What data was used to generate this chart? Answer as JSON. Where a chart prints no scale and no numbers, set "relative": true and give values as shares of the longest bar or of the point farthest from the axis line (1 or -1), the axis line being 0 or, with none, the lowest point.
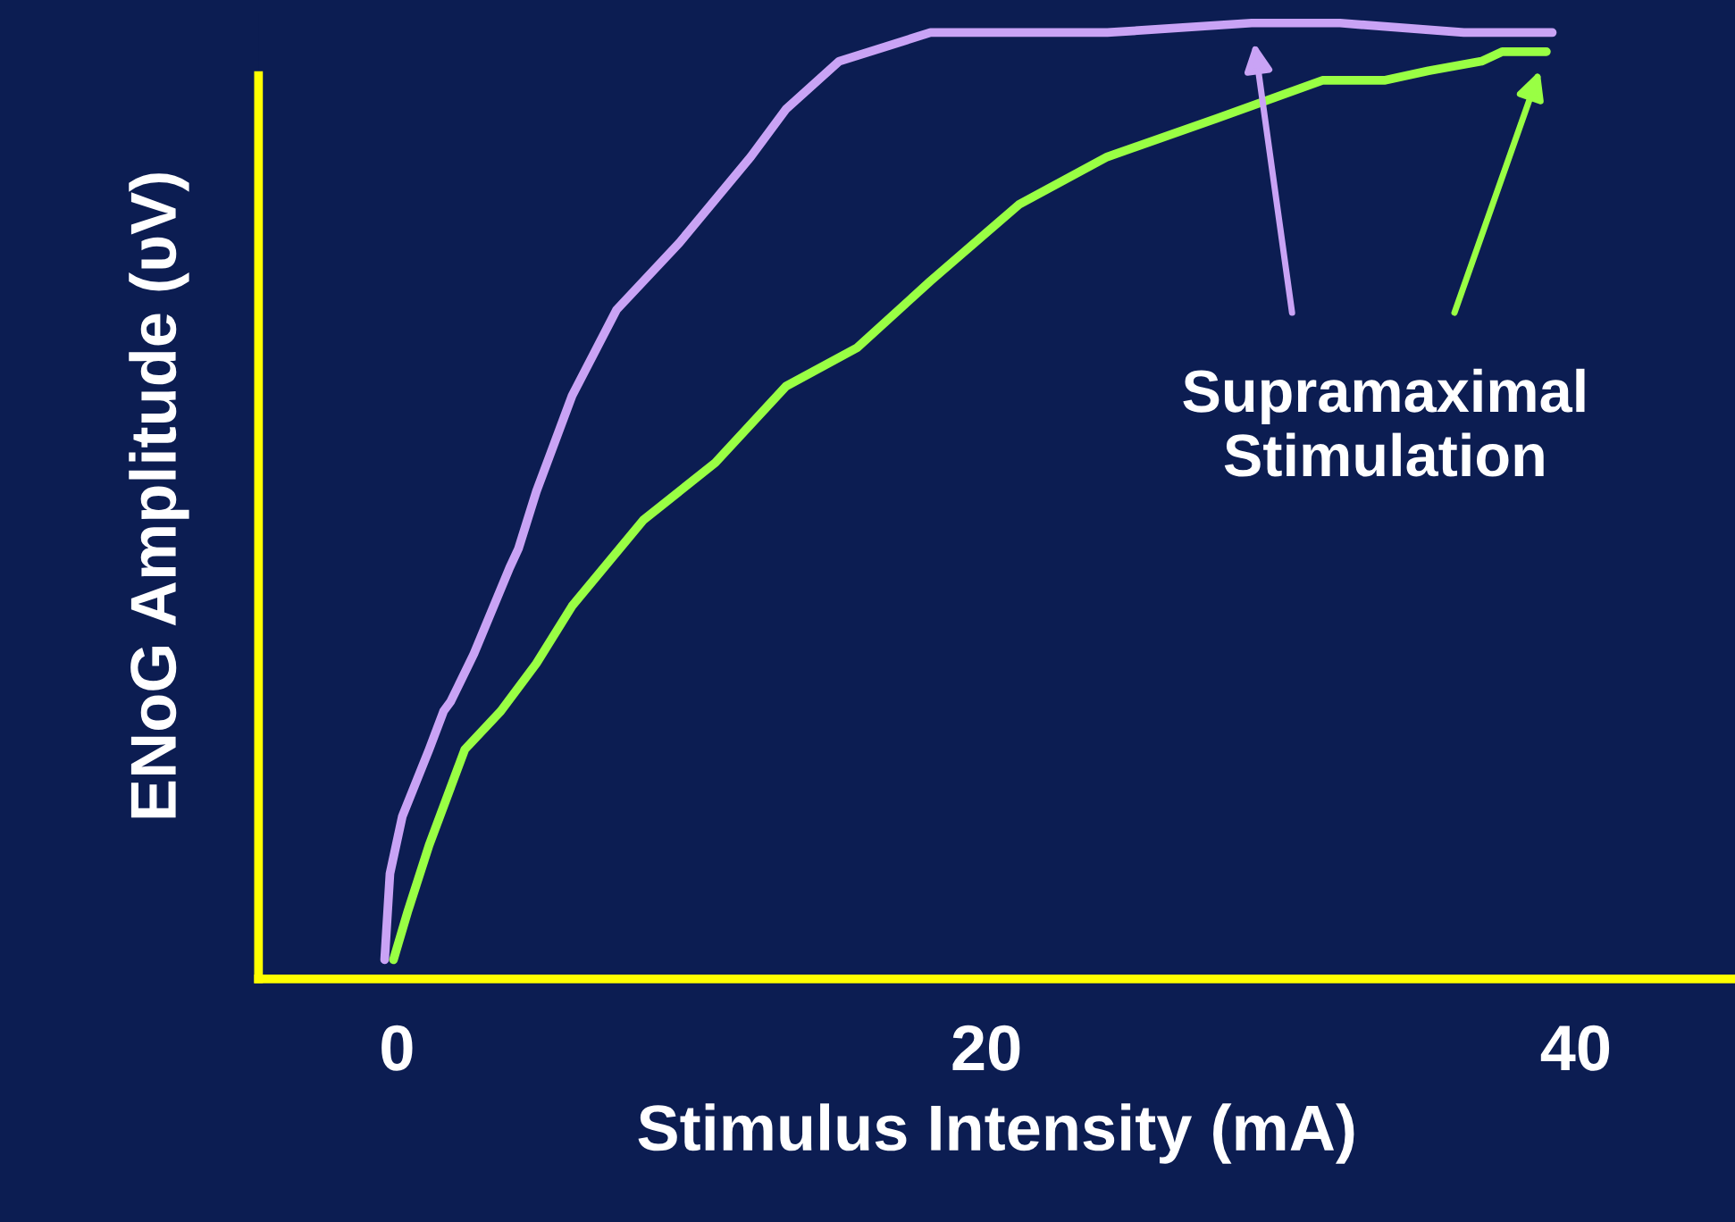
{
  "chart_data": {
    "type": "line",
    "relative": true,
    "xlabel": "Stimulus Intensity (mA)",
    "ylabel": "ENoG Amplitude (υV)",
    "xlim": [
      -4.7,
      45.4
    ],
    "xticks": [
      0,
      20,
      40
    ],
    "tick_labels": "x",
    "grid": false,
    "legend": false,
    "marker": "none",
    "line_style": "solid",
    "series": [
      {
        "color": "#c9a3f5",
        "x": [
          -0.42,
          -0.24,
          0.18,
          1.09,
          1.58,
          1.82,
          2.61,
          3.82,
          4.12,
          4.73,
          5.94,
          7.45,
          9.58,
          12.0,
          13.2,
          15.0,
          18.1,
          21.6,
          24.1,
          29.0,
          32.0,
          36.2,
          39.2
        ],
        "values": [
          0.02,
          0.11,
          0.17,
          0.24,
          0.28,
          0.29,
          0.34,
          0.43,
          0.45,
          0.51,
          0.61,
          0.7,
          0.77,
          0.86,
          0.91,
          0.96,
          0.99,
          0.99,
          0.99,
          1.0,
          1.0,
          0.99,
          0.99
        ]
      },
      {
        "color": "#99ff44",
        "x": [
          -0.12,
          0.36,
          1.09,
          2.3,
          3.52,
          4.73,
          5.94,
          8.36,
          10.8,
          13.2,
          15.6,
          18.1,
          21.1,
          24.1,
          27.8,
          31.4,
          33.5,
          35.0,
          36.8,
          37.5,
          39.0
        ],
        "values": [
          0.02,
          0.07,
          0.14,
          0.24,
          0.28,
          0.33,
          0.39,
          0.48,
          0.54,
          0.62,
          0.66,
          0.73,
          0.81,
          0.86,
          0.9,
          0.94,
          0.94,
          0.95,
          0.96,
          0.97,
          0.97
        ]
      }
    ],
    "annotations": [
      "Supramaximal\nStimulation"
    ]
  }
}
